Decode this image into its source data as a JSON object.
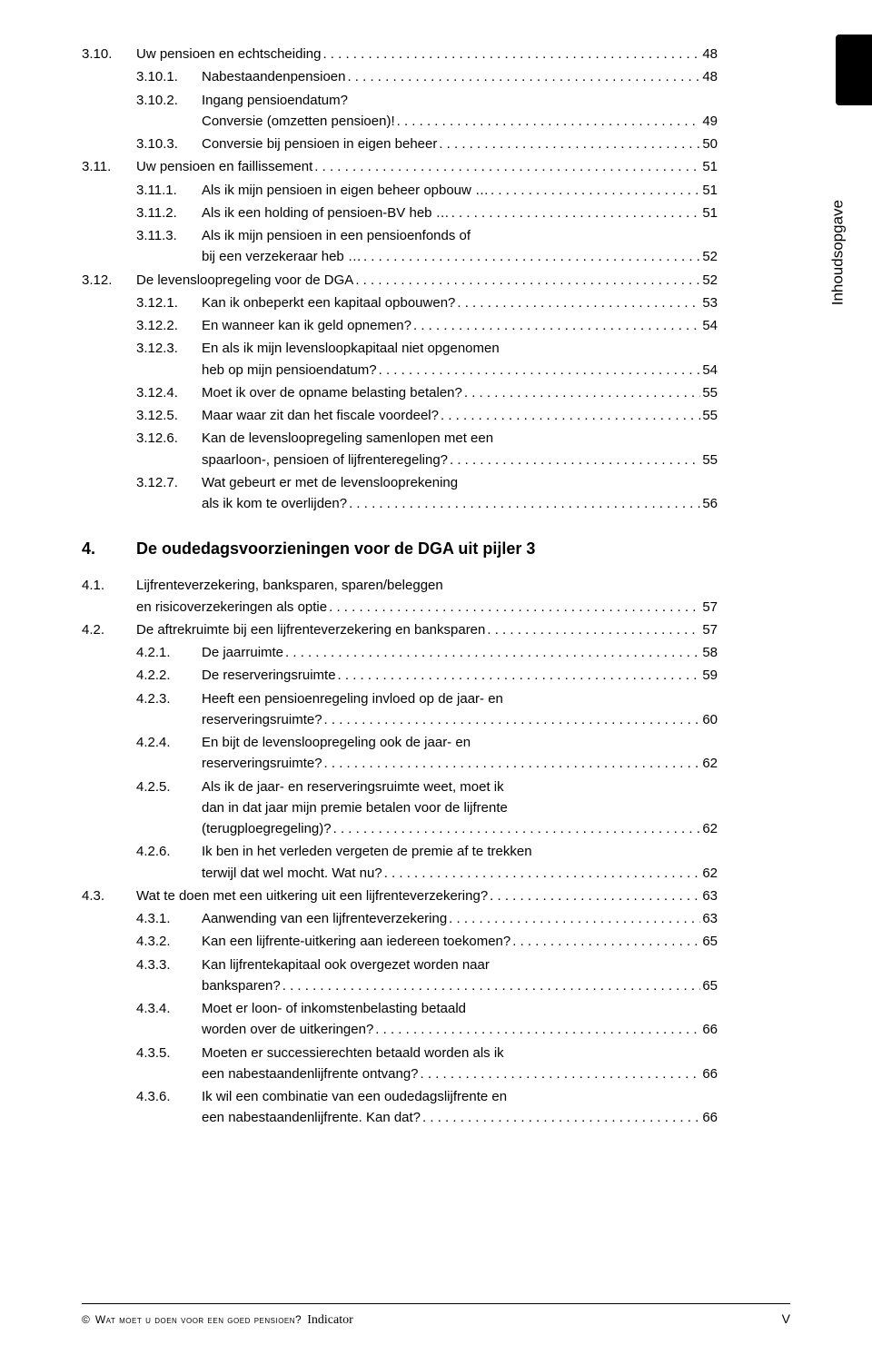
{
  "sideLabel": "Inhoudsopgave",
  "chapter4": {
    "num": "4.",
    "title": "De oudedagsvoorzieningen voor de DGA uit pijler 3"
  },
  "entries": [
    {
      "lvl": 2,
      "num": "3.10.",
      "text": "Uw pensioen en echtscheiding",
      "page": "48"
    },
    {
      "lvl": 3,
      "num": "3.10.1.",
      "text": "Nabestaandenpensioen",
      "page": "48"
    },
    {
      "lvl": 3,
      "num": "3.10.2.",
      "text": "Ingang pensioendatum?",
      "cont": "Conversie (omzetten pensioen)!",
      "page": "49"
    },
    {
      "lvl": 3,
      "num": "3.10.3.",
      "text": "Conversie bij pensioen in eigen beheer",
      "page": "50"
    },
    {
      "lvl": 2,
      "num": "3.11.",
      "text": "Uw pensioen en faillissement",
      "page": "51"
    },
    {
      "lvl": 3,
      "num": "3.11.1.",
      "text": "Als ik mijn pensioen in eigen beheer opbouw …",
      "page": "51"
    },
    {
      "lvl": 3,
      "num": "3.11.2.",
      "text": "Als ik een holding of pensioen-BV heb …",
      "page": "51"
    },
    {
      "lvl": 3,
      "num": "3.11.3.",
      "text": "Als ik mijn pensioen in een pensioenfonds of",
      "cont": "bij een verzekeraar heb …",
      "page": "52"
    },
    {
      "lvl": 2,
      "num": "3.12.",
      "text": "De levensloopregeling voor de DGA",
      "page": "52"
    },
    {
      "lvl": 3,
      "num": "3.12.1.",
      "text": "Kan ik onbeperkt een kapitaal opbouwen?",
      "page": "53"
    },
    {
      "lvl": 3,
      "num": "3.12.2.",
      "text": "En wanneer kan ik geld opnemen?",
      "page": "54"
    },
    {
      "lvl": 3,
      "num": "3.12.3.",
      "text": "En als ik mijn levensloopkapitaal niet opgenomen",
      "cont": "heb op mijn pensioendatum?",
      "page": "54"
    },
    {
      "lvl": 3,
      "num": "3.12.4.",
      "text": "Moet ik over de opname belasting betalen?",
      "page": "55"
    },
    {
      "lvl": 3,
      "num": "3.12.5.",
      "text": "Maar waar zit dan het fiscale voordeel?",
      "page": "55"
    },
    {
      "lvl": 3,
      "num": "3.12.6.",
      "text": "Kan de levensloopregeling samenlopen met een",
      "cont": "spaarloon-, pensioen of lijfrenteregeling?",
      "page": "55"
    },
    {
      "lvl": 3,
      "num": "3.12.7.",
      "text": "Wat gebeurt er met de levenslooprekening",
      "cont": "als ik kom te overlijden?",
      "page": "56"
    }
  ],
  "entries2": [
    {
      "lvl": 2,
      "num": "4.1.",
      "text": "Lijfrenteverzekering, banksparen, sparen/beleggen",
      "cont": "en risicoverzekeringen als optie",
      "page": "57"
    },
    {
      "lvl": 2,
      "num": "4.2.",
      "text": "De aftrekruimte bij een lijfrenteverzekering en banksparen",
      "page": "57"
    },
    {
      "lvl": 3,
      "num": "4.2.1.",
      "text": "De jaarruimte",
      "page": "58"
    },
    {
      "lvl": 3,
      "num": "4.2.2.",
      "text": "De reserveringsruimte",
      "page": "59"
    },
    {
      "lvl": 3,
      "num": "4.2.3.",
      "text": "Heeft een pensioenregeling invloed op de jaar- en",
      "cont": "reserveringsruimte?",
      "page": "60"
    },
    {
      "lvl": 3,
      "num": "4.2.4.",
      "text": "En bijt de levensloopregeling ook de jaar- en",
      "cont": "reserveringsruimte?",
      "page": "62"
    },
    {
      "lvl": 3,
      "num": "4.2.5.",
      "text": "Als ik de jaar- en reserveringsruimte weet, moet ik",
      "cont": "dan in dat jaar mijn premie betalen voor de lijfrente",
      "cont2": "(terugploegregeling)?",
      "page": "62"
    },
    {
      "lvl": 3,
      "num": "4.2.6.",
      "text": "Ik ben in het verleden vergeten de premie af te trekken",
      "cont": "terwijl dat wel mocht. Wat nu?",
      "page": "62"
    },
    {
      "lvl": 2,
      "num": "4.3.",
      "text": "Wat te doen met een uitkering uit een lijfrenteverzekering?",
      "page": "63"
    },
    {
      "lvl": 3,
      "num": "4.3.1.",
      "text": "Aanwending van een lijfrenteverzekering",
      "page": "63"
    },
    {
      "lvl": 3,
      "num": "4.3.2.",
      "text": "Kan een lijfrente-uitkering aan iedereen toekomen?",
      "page": "65"
    },
    {
      "lvl": 3,
      "num": "4.3.3.",
      "text": "Kan lijfrentekapitaal ook overgezet worden naar",
      "cont": "banksparen?",
      "page": "65"
    },
    {
      "lvl": 3,
      "num": "4.3.4.",
      "text": "Moet er loon- of inkomstenbelasting betaald",
      "cont": "worden over de uitkeringen?",
      "page": "66"
    },
    {
      "lvl": 3,
      "num": "4.3.5.",
      "text": "Moeten er successierechten betaald worden als ik",
      "cont": "een nabestaandenlijfrente ontvang?",
      "page": "66"
    },
    {
      "lvl": 3,
      "num": "4.3.6.",
      "text": "Ik wil een combinatie van een oudedagslijfrente en",
      "cont": "een nabestaandenlijfrente. Kan dat?",
      "page": "66"
    }
  ],
  "footer": {
    "copyright": "©",
    "title": "Wat moet u doen voor een goed pensioen?",
    "brand": "Indicator",
    "pagenum": "V"
  }
}
